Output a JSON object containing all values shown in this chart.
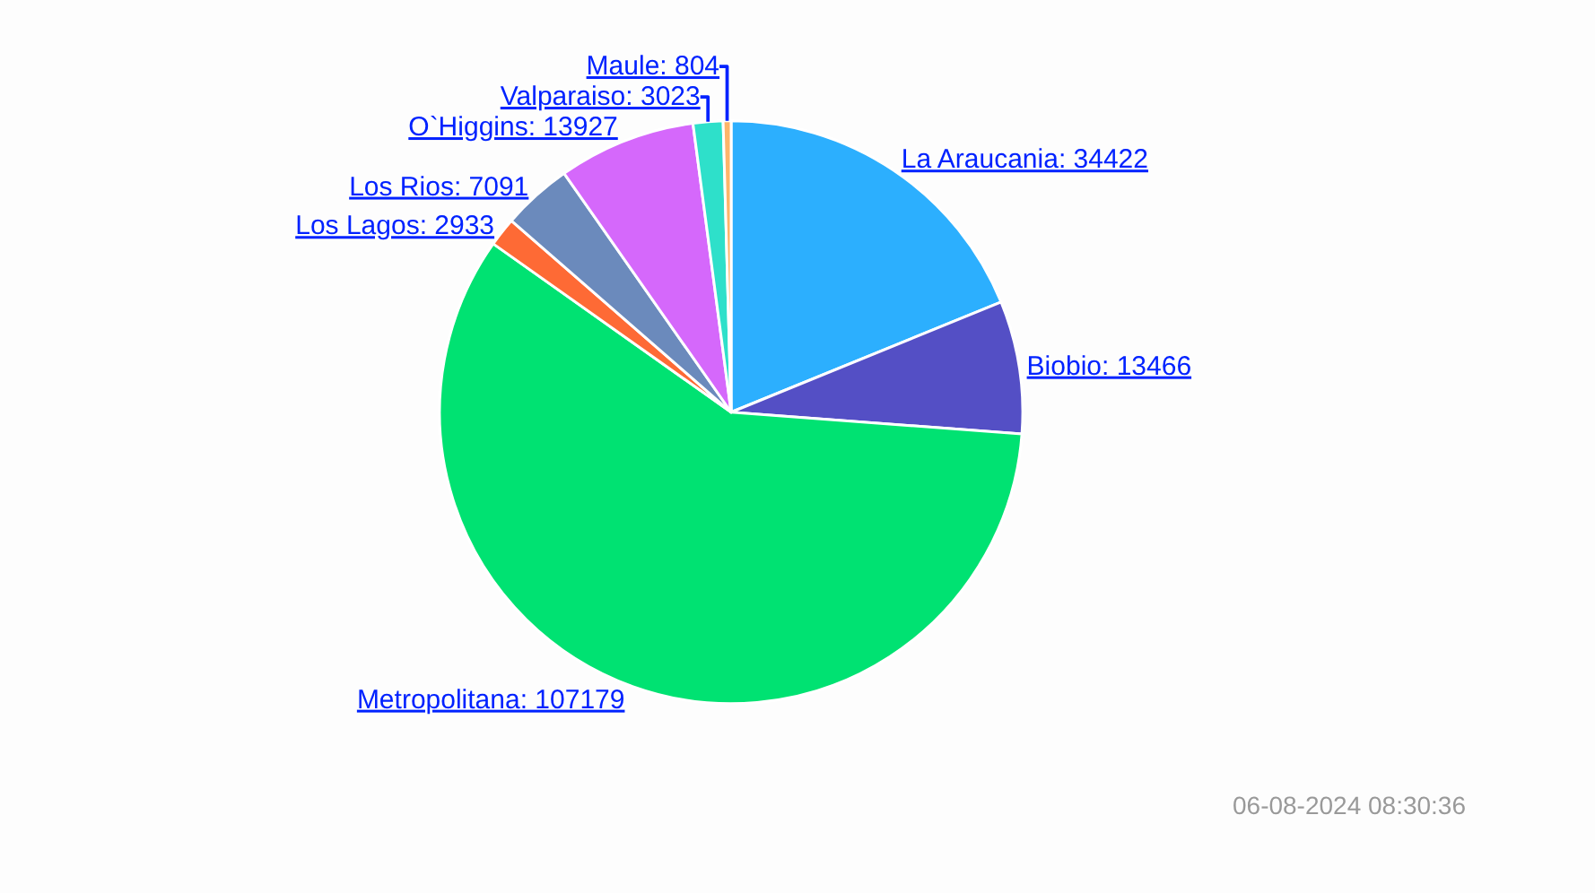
{
  "chart_data": {
    "type": "pie",
    "categories": [
      "La Araucania",
      "Biobio",
      "Metropolitana",
      "Los Lagos",
      "Los Rios",
      "O`Higgins",
      "Valparaiso",
      "Maule"
    ],
    "values": [
      34422,
      13466,
      107179,
      2933,
      7091,
      13927,
      3023,
      804
    ],
    "colors": [
      "#2caffe",
      "#544fc5",
      "#00e272",
      "#fe6a35",
      "#6b8abc",
      "#d568fb",
      "#2ee0ca",
      "#feb56a"
    ],
    "value_labels": [
      ": 34422",
      ": 13466",
      ": 107179",
      ": 2933",
      ": 7091",
      ": 13927",
      ": 3023",
      ": 804"
    ],
    "annotations": [
      "06-08-2024 08:30:36"
    ]
  }
}
